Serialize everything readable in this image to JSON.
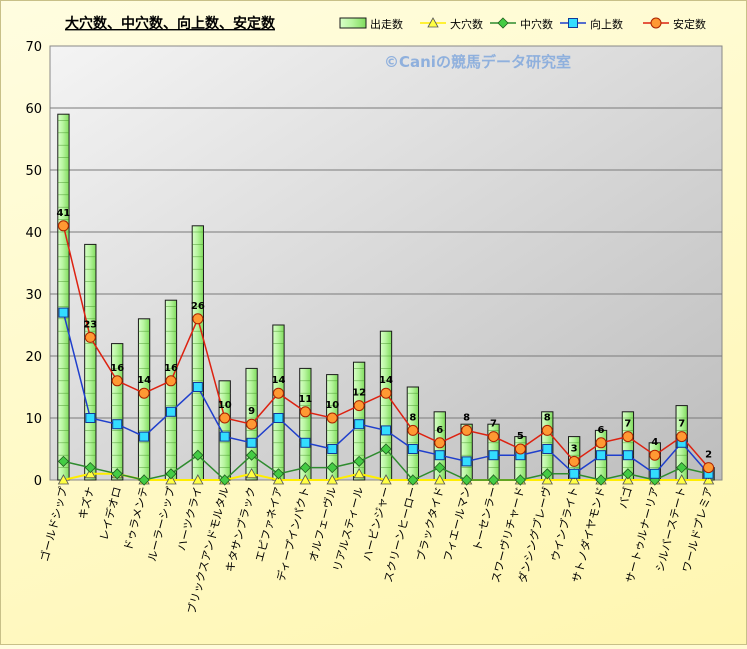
{
  "chart_data": {
    "type": "bar",
    "title": "大穴数、中穴数、向上数、安定数",
    "watermark": "©Caniの競馬データ研究室",
    "ylim": [
      0,
      70
    ],
    "yticks": [
      0,
      10,
      20,
      30,
      40,
      50,
      60,
      70
    ],
    "grid": true,
    "legend_position": "top-right",
    "categories": [
      "ゴールドシップ",
      "キズナ",
      "レイデオロ",
      "ドゥラメンテ",
      "ルーラーシップ",
      "ハーツクライ",
      "ブリックスアンドモルタル",
      "キタサンブラック",
      "エピファネイア",
      "ディープインパクト",
      "オルフェーヴル",
      "リアルスティール",
      "ハービンジャー",
      "スクリーンヒーロー",
      "ブラックタイド",
      "フィエールマン",
      "トーセンラー",
      "スワーヴリチャード",
      "ダンシングブレーヴ",
      "ウインブライト",
      "サトノダイヤモンド",
      "バゴ",
      "サートゥルナーリア",
      "シルバーステート",
      "ワールドプレミア"
    ],
    "series": [
      {
        "name": "出走数",
        "kind": "bar",
        "color": "#99ee77",
        "values": [
          59,
          38,
          22,
          26,
          29,
          41,
          16,
          18,
          25,
          18,
          17,
          19,
          24,
          15,
          11,
          9,
          9,
          7,
          11,
          7,
          8,
          11,
          6,
          12,
          2
        ]
      },
      {
        "name": "大穴数",
        "kind": "line",
        "marker": "triangle",
        "color": "#ffee00",
        "values": [
          0,
          1,
          1,
          0,
          0,
          0,
          0,
          1,
          0,
          0,
          0,
          1,
          0,
          0,
          0,
          0,
          0,
          0,
          0,
          0,
          0,
          0,
          0,
          0,
          0
        ]
      },
      {
        "name": "中穴数",
        "kind": "line",
        "marker": "diamond",
        "color": "#2e8b2e",
        "values": [
          3,
          2,
          1,
          0,
          1,
          4,
          0,
          4,
          1,
          2,
          2,
          3,
          5,
          0,
          2,
          0,
          0,
          0,
          1,
          1,
          0,
          1,
          0,
          2,
          1
        ]
      },
      {
        "name": "向上数",
        "kind": "line",
        "marker": "square",
        "color": "#1f3fcc",
        "values": [
          27,
          10,
          9,
          7,
          11,
          15,
          7,
          6,
          10,
          6,
          5,
          9,
          8,
          5,
          4,
          3,
          4,
          4,
          5,
          1,
          4,
          4,
          1,
          6,
          1
        ]
      },
      {
        "name": "安定数",
        "kind": "line",
        "marker": "circle",
        "color": "#dd2211",
        "values": [
          41,
          23,
          16,
          14,
          16,
          26,
          10,
          9,
          14,
          11,
          10,
          12,
          14,
          8,
          6,
          8,
          7,
          5,
          8,
          3,
          6,
          7,
          4,
          7,
          2
        ]
      }
    ],
    "data_labels": {
      "series": "安定数"
    }
  }
}
